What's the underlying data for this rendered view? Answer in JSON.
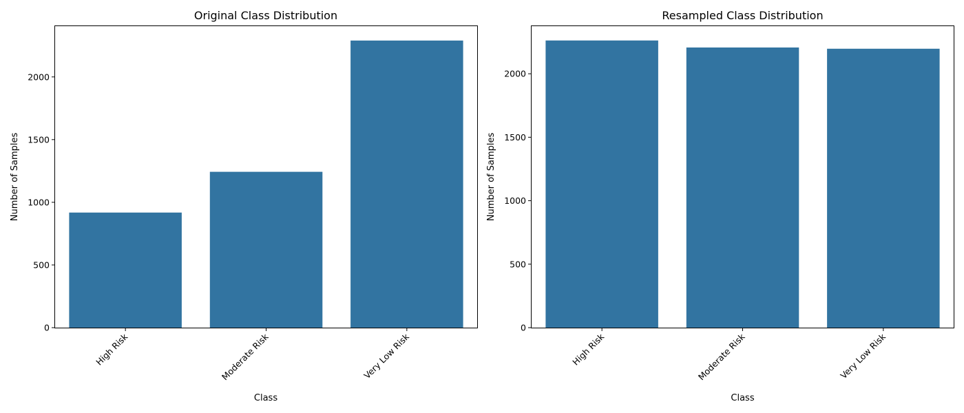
{
  "colors": {
    "bar": "#3274a1",
    "axis": "#000000",
    "background": "#ffffff"
  },
  "chart_data": [
    {
      "type": "bar",
      "title": "Original Class Distribution",
      "xlabel": "Class",
      "ylabel": "Number of Samples",
      "categories": [
        "High Risk",
        "Moderate Risk",
        "Very Low Risk"
      ],
      "values": [
        918,
        1243,
        2290
      ],
      "ylim": [
        0,
        2405
      ],
      "yticks": [
        0,
        500,
        1000,
        1500,
        2000
      ],
      "grid": false,
      "legend": "none"
    },
    {
      "type": "bar",
      "title": "Resampled Class Distribution",
      "xlabel": "Class",
      "ylabel": "Number of Samples",
      "categories": [
        "High Risk",
        "Moderate Risk",
        "Very Low Risk"
      ],
      "values": [
        2262,
        2207,
        2197
      ],
      "ylim": [
        0,
        2375
      ],
      "yticks": [
        0,
        500,
        1000,
        1500,
        2000
      ],
      "grid": false,
      "legend": "none"
    }
  ]
}
